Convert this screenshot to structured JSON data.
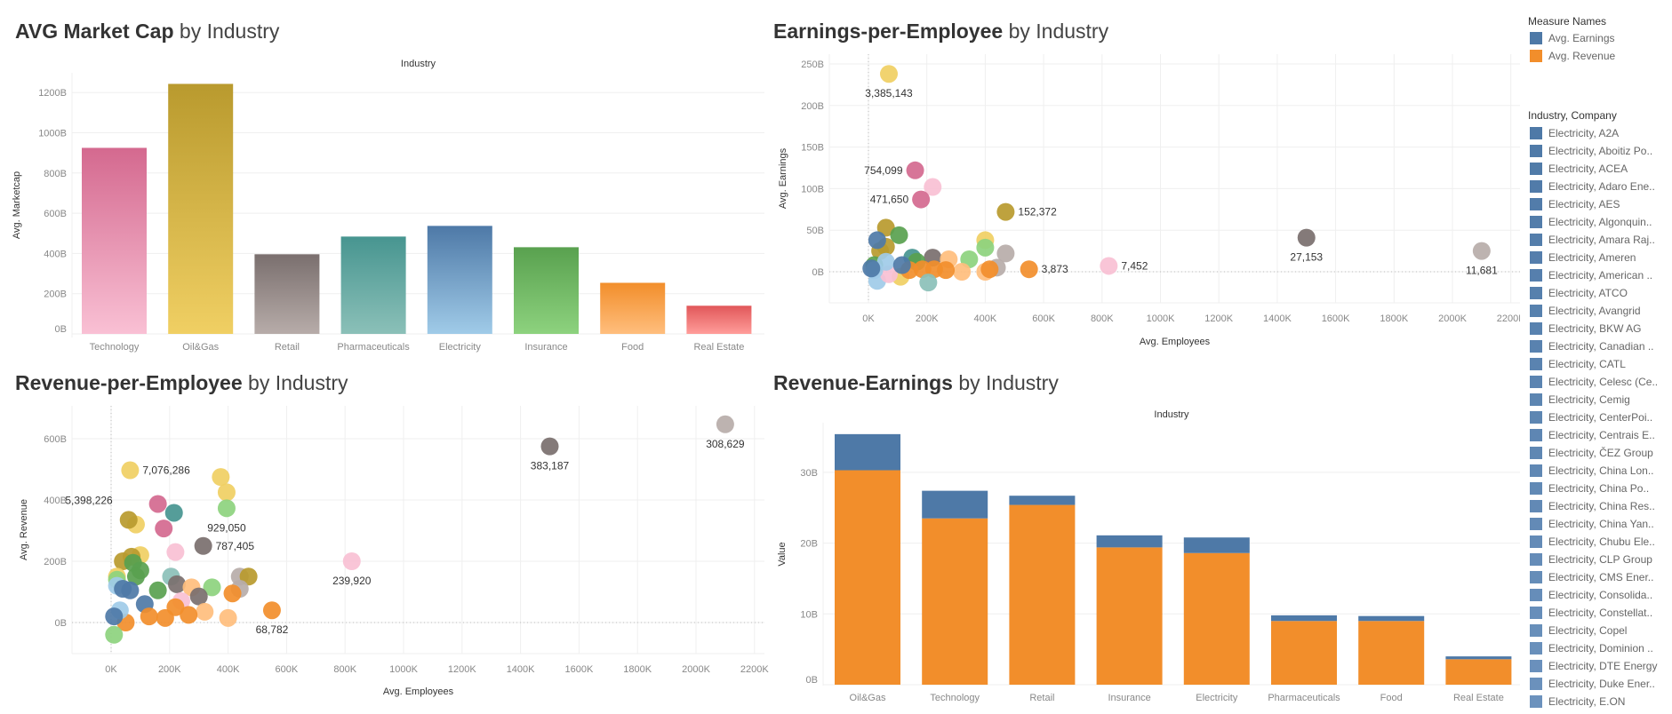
{
  "colors": {
    "Technology": [
      "#d4698f",
      "#f9c0d4"
    ],
    "Oil&Gas": [
      "#b99a2e",
      "#f0cf63"
    ],
    "Retail": [
      "#7a6f6e",
      "#b7aca9"
    ],
    "Pharmaceuticals": [
      "#479590",
      "#8bc0b8"
    ],
    "Electricity": [
      "#4e79a7",
      "#a0cbe8"
    ],
    "Insurance": [
      "#59a14f",
      "#8dd27e"
    ],
    "Food": [
      "#f28e2b",
      "#ffbe7d"
    ],
    "Real Estate": [
      "#e15759",
      "#ff9d9a"
    ],
    "earnings": "#4e79a7",
    "revenue": "#f28e2b"
  },
  "panels": {
    "market_cap": {
      "title_bold": "AVG Market Cap",
      "title_rest": " by Industry"
    },
    "earnings_emp": {
      "title_bold": "Earnings-per-Employee",
      "title_rest": " by Industry"
    },
    "revenue_emp": {
      "title_bold": "Revenue-per-Employee",
      "title_rest": " by Industry"
    },
    "revenue_earnings": {
      "title_bold": "Revenue-Earnings",
      "title_rest": " by Industry"
    }
  },
  "legend": {
    "measure_title": "Measure Names",
    "measures": [
      {
        "label": "Avg. Earnings",
        "color": "#4e79a7"
      },
      {
        "label": "Avg. Revenue",
        "color": "#f28e2b"
      }
    ],
    "company_title": "Industry, Company",
    "companies": [
      "Electricity, A2A",
      "Electricity, Aboitiz Po..",
      "Electricity, ACEA",
      "Electricity, Adaro Ene..",
      "Electricity, AES",
      "Electricity, Algonquin..",
      "Electricity, Amara Raj..",
      "Electricity, Ameren",
      "Electricity, American ..",
      "Electricity, ATCO",
      "Electricity, Avangrid",
      "Electricity, BKW AG",
      "Electricity, Canadian ..",
      "Electricity, CATL",
      "Electricity, Celesc (Ce..",
      "Electricity, Cemig",
      "Electricity, CenterPoi..",
      "Electricity, Centrais E..",
      "Electricity, ČEZ Group",
      "Electricity, China Lon..",
      "Electricity, China Po..",
      "Electricity, China Res..",
      "Electricity, China Yan..",
      "Electricity, Chubu Ele..",
      "Electricity, CLP Group",
      "Electricity, CMS Ener..",
      "Electricity, Consolida..",
      "Electricity, Constellat..",
      "Electricity, Copel",
      "Electricity, Dominion ..",
      "Electricity, DTE Energy",
      "Electricity, Duke Ener..",
      "Electricity, E.ON"
    ]
  },
  "chart_data": [
    {
      "id": "market_cap",
      "type": "bar",
      "header": "Industry",
      "ylabel": "Avg. Marketcap",
      "yticks": [
        "0B",
        "200B",
        "400B",
        "600B",
        "800B",
        "1000B",
        "1200B"
      ],
      "ylim": [
        0,
        1300
      ],
      "categories": [
        "Technology",
        "Oil&Gas",
        "Retail",
        "Pharmaceuticals",
        "Electricity",
        "Insurance",
        "Food",
        "Real Estate"
      ],
      "values": [
        925,
        1243,
        396,
        484,
        537,
        431,
        254,
        140
      ],
      "unit": "B"
    },
    {
      "id": "earnings_emp",
      "type": "scatter",
      "xlabel": "Avg. Employees",
      "ylabel": "Avg. Earnings",
      "xticks": [
        "0K",
        "200K",
        "400K",
        "600K",
        "800K",
        "1000K",
        "1200K",
        "1400K",
        "1600K",
        "1800K",
        "2000K",
        "2200K"
      ],
      "yticks": [
        "0B",
        "50B",
        "100B",
        "150B",
        "200B",
        "250B"
      ],
      "xlim_K": [
        -130,
        2230
      ],
      "ylim_B": [
        -37,
        262
      ],
      "points": [
        {
          "industry": "Oil&Gas",
          "shade": 1,
          "x": 70,
          "y": 238,
          "label": "3,385,143",
          "label_pos": "below"
        },
        {
          "industry": "Technology",
          "shade": 0,
          "x": 160,
          "y": 122,
          "label": "754,099",
          "label_pos": "left"
        },
        {
          "industry": "Technology",
          "shade": 1,
          "x": 220,
          "y": 102
        },
        {
          "industry": "Technology",
          "shade": 0,
          "x": 180,
          "y": 87,
          "label": "471,650",
          "label_pos": "left"
        },
        {
          "industry": "Oil&Gas",
          "shade": 0,
          "x": 470,
          "y": 72,
          "label": "152,372",
          "label_pos": "right"
        },
        {
          "industry": "Retail",
          "shade": 0,
          "x": 1500,
          "y": 41,
          "label": "27,153",
          "label_pos": "below"
        },
        {
          "industry": "Retail",
          "shade": 1,
          "x": 2100,
          "y": 25,
          "label": "11,681",
          "label_pos": "below"
        },
        {
          "industry": "Technology",
          "shade": 1,
          "x": 823,
          "y": 7,
          "label": "7,452",
          "label_pos": "right"
        },
        {
          "industry": "Food",
          "shade": 0,
          "x": 550,
          "y": 3,
          "label": "3,873",
          "label_pos": "right"
        },
        {
          "industry": "Oil&Gas",
          "shade": 0,
          "x": 60,
          "y": 53
        },
        {
          "industry": "Insurance",
          "shade": 0,
          "x": 105,
          "y": 44
        },
        {
          "industry": "Oil&Gas",
          "shade": 1,
          "x": 400,
          "y": 38
        },
        {
          "industry": "Insurance",
          "shade": 1,
          "x": 400,
          "y": 29
        },
        {
          "industry": "Oil&Gas",
          "shade": 0,
          "x": 40,
          "y": 25
        },
        {
          "industry": "Oil&Gas",
          "shade": 0,
          "x": 60,
          "y": 30
        },
        {
          "industry": "Retail",
          "shade": 1,
          "x": 470,
          "y": 22
        },
        {
          "industry": "Retail",
          "shade": 0,
          "x": 220,
          "y": 17
        },
        {
          "industry": "Pharmaceuticals",
          "shade": 0,
          "x": 150,
          "y": 17
        },
        {
          "industry": "Insurance",
          "shade": 0,
          "x": 165,
          "y": 12
        },
        {
          "industry": "Food",
          "shade": 1,
          "x": 275,
          "y": 15
        },
        {
          "industry": "Insurance",
          "shade": 1,
          "x": 345,
          "y": 15
        },
        {
          "industry": "Retail",
          "shade": 1,
          "x": 440,
          "y": 5
        },
        {
          "industry": "Food",
          "shade": 1,
          "x": 400,
          "y": 0
        },
        {
          "industry": "Food",
          "shade": 0,
          "x": 415,
          "y": 3
        },
        {
          "industry": "Food",
          "shade": 1,
          "x": 320,
          "y": 0
        },
        {
          "industry": "Food",
          "shade": 0,
          "x": 265,
          "y": 2
        },
        {
          "industry": "Food",
          "shade": 0,
          "x": 225,
          "y": 3
        },
        {
          "industry": "Food",
          "shade": 0,
          "x": 185,
          "y": 3
        },
        {
          "industry": "Oil&Gas",
          "shade": 1,
          "x": 110,
          "y": -6
        },
        {
          "industry": "Pharmaceuticals",
          "shade": 1,
          "x": 205,
          "y": -13
        },
        {
          "industry": "Electricity",
          "shade": 1,
          "x": 30,
          "y": -11
        },
        {
          "industry": "Technology",
          "shade": 1,
          "x": 70,
          "y": -3
        },
        {
          "industry": "Food",
          "shade": 0,
          "x": 140,
          "y": 2
        },
        {
          "industry": "Insurance",
          "shade": 0,
          "x": 20,
          "y": 8
        },
        {
          "industry": "Electricity",
          "shade": 0,
          "x": 30,
          "y": 38
        },
        {
          "industry": "Electricity",
          "shade": 1,
          "x": 60,
          "y": 12
        },
        {
          "industry": "Electricity",
          "shade": 0,
          "x": 115,
          "y": 8
        },
        {
          "industry": "Electricity",
          "shade": 1,
          "x": 20,
          "y": 2
        },
        {
          "industry": "Electricity",
          "shade": 0,
          "x": 10,
          "y": 4
        }
      ]
    },
    {
      "id": "revenue_emp",
      "type": "scatter",
      "xlabel": "Avg. Employees",
      "ylabel": "Avg. Revenue",
      "xticks": [
        "0K",
        "200K",
        "400K",
        "600K",
        "800K",
        "1000K",
        "1200K",
        "1400K",
        "1600K",
        "1800K",
        "2000K",
        "2200K"
      ],
      "yticks": [
        "0B",
        "200B",
        "400B",
        "600B"
      ],
      "xlim_K": [
        -130,
        2230
      ],
      "ylim_B": [
        -101,
        708
      ],
      "points": [
        {
          "industry": "Retail",
          "shade": 1,
          "x": 2100,
          "y": 647,
          "label": "308,629",
          "label_pos": "below"
        },
        {
          "industry": "Retail",
          "shade": 0,
          "x": 1500,
          "y": 575,
          "label": "383,187",
          "label_pos": "below"
        },
        {
          "industry": "Oil&Gas",
          "shade": 1,
          "x": 65,
          "y": 497,
          "label": "7,076,286",
          "label_pos": "right"
        },
        {
          "industry": "Oil&Gas",
          "shade": 1,
          "x": 375,
          "y": 475
        },
        {
          "industry": "Oil&Gas",
          "shade": 1,
          "x": 395,
          "y": 425
        },
        {
          "industry": "Insurance",
          "shade": 1,
          "x": 395,
          "y": 373,
          "label": "929,050",
          "label_pos": "below"
        },
        {
          "industry": "Technology",
          "shade": 0,
          "x": 160,
          "y": 387
        },
        {
          "industry": "Pharmaceuticals",
          "shade": 0,
          "x": 215,
          "y": 358
        },
        {
          "industry": "Oil&Gas",
          "shade": 1,
          "x": 85,
          "y": 320
        },
        {
          "industry": "Oil&Gas",
          "shade": 0,
          "x": 60,
          "y": 335,
          "label": "5,398,226",
          "label_pos": "upleft"
        },
        {
          "industry": "Technology",
          "shade": 0,
          "x": 180,
          "y": 307
        },
        {
          "industry": "Retail",
          "shade": 0,
          "x": 315,
          "y": 250,
          "label": "787,405",
          "label_pos": "right"
        },
        {
          "industry": "Technology",
          "shade": 1,
          "x": 220,
          "y": 230
        },
        {
          "industry": "Technology",
          "shade": 1,
          "x": 823,
          "y": 200,
          "label": "239,920",
          "label_pos": "below"
        },
        {
          "industry": "Oil&Gas",
          "shade": 1,
          "x": 100,
          "y": 220
        },
        {
          "industry": "Oil&Gas",
          "shade": 0,
          "x": 40,
          "y": 200
        },
        {
          "industry": "Oil&Gas",
          "shade": 0,
          "x": 70,
          "y": 215
        },
        {
          "industry": "Insurance",
          "shade": 0,
          "x": 75,
          "y": 195
        },
        {
          "industry": "Insurance",
          "shade": 0,
          "x": 100,
          "y": 170
        },
        {
          "industry": "Insurance",
          "shade": 0,
          "x": 85,
          "y": 150
        },
        {
          "industry": "Oil&Gas",
          "shade": 1,
          "x": 20,
          "y": 150
        },
        {
          "industry": "Insurance",
          "shade": 1,
          "x": 20,
          "y": 140
        },
        {
          "industry": "Pharmaceuticals",
          "shade": 1,
          "x": 205,
          "y": 150
        },
        {
          "industry": "Retail",
          "shade": 0,
          "x": 225,
          "y": 125
        },
        {
          "industry": "Retail",
          "shade": 1,
          "x": 440,
          "y": 150
        },
        {
          "industry": "Oil&Gas",
          "shade": 0,
          "x": 470,
          "y": 150
        },
        {
          "industry": "Retail",
          "shade": 1,
          "x": 440,
          "y": 110
        },
        {
          "industry": "Food",
          "shade": 1,
          "x": 275,
          "y": 115
        },
        {
          "industry": "Insurance",
          "shade": 1,
          "x": 345,
          "y": 115
        },
        {
          "industry": "Food",
          "shade": 0,
          "x": 415,
          "y": 95
        },
        {
          "industry": "Retail",
          "shade": 0,
          "x": 300,
          "y": 85
        },
        {
          "industry": "Insurance",
          "shade": 0,
          "x": 160,
          "y": 105
        },
        {
          "industry": "Technology",
          "shade": 1,
          "x": 240,
          "y": 70
        },
        {
          "industry": "Electricity",
          "shade": 1,
          "x": 20,
          "y": 120
        },
        {
          "industry": "Electricity",
          "shade": 0,
          "x": 40,
          "y": 110
        },
        {
          "industry": "Electricity",
          "shade": 0,
          "x": 65,
          "y": 105
        },
        {
          "industry": "Electricity",
          "shade": 0,
          "x": 115,
          "y": 60
        },
        {
          "industry": "Food",
          "shade": 0,
          "x": 220,
          "y": 50
        },
        {
          "industry": "Food",
          "shade": 1,
          "x": 320,
          "y": 35
        },
        {
          "industry": "Food",
          "shade": 0,
          "x": 550,
          "y": 40,
          "label": "68,782",
          "label_pos": "below"
        },
        {
          "industry": "Food",
          "shade": 1,
          "x": 400,
          "y": 15
        },
        {
          "industry": "Food",
          "shade": 0,
          "x": 185,
          "y": 15
        },
        {
          "industry": "Food",
          "shade": 0,
          "x": 265,
          "y": 25
        },
        {
          "industry": "Food",
          "shade": 0,
          "x": 130,
          "y": 20
        },
        {
          "industry": "Food",
          "shade": 0,
          "x": 50,
          "y": 0
        },
        {
          "industry": "Electricity",
          "shade": 1,
          "x": 30,
          "y": 40
        },
        {
          "industry": "Insurance",
          "shade": 1,
          "x": 10,
          "y": -40
        },
        {
          "industry": "Electricity",
          "shade": 0,
          "x": 10,
          "y": 20
        }
      ]
    },
    {
      "id": "revenue_earnings",
      "type": "bar",
      "stacked": true,
      "header": "Industry",
      "ylabel": "Value",
      "yticks": [
        "0B",
        "10B",
        "20B",
        "30B"
      ],
      "ylim": [
        0,
        37
      ],
      "categories": [
        "Oil&Gas",
        "Technology",
        "Retail",
        "Insurance",
        "Electricity",
        "Pharmaceuticals",
        "Food",
        "Real Estate"
      ],
      "series": [
        {
          "name": "Avg. Revenue",
          "values": [
            30.3,
            23.5,
            25.4,
            19.4,
            18.6,
            9.0,
            9.0,
            3.6
          ]
        },
        {
          "name": "Avg. Earnings",
          "values": [
            5.1,
            3.9,
            1.3,
            1.7,
            2.2,
            0.8,
            0.7,
            0.4
          ]
        }
      ],
      "unit": "B"
    }
  ]
}
